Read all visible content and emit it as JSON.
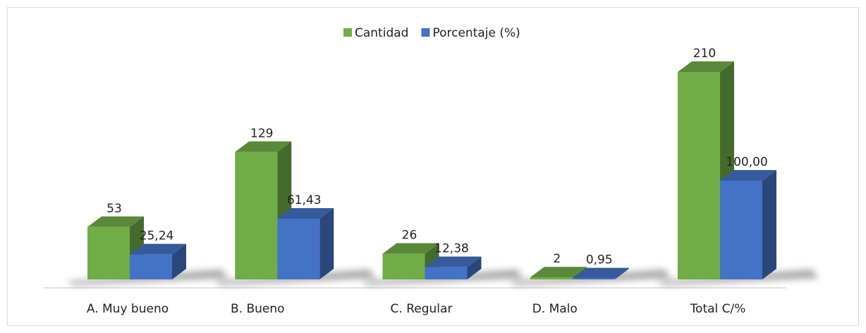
{
  "chart_data": {
    "type": "bar3d",
    "categories": [
      "A. Muy bueno",
      "B. Bueno",
      "C. Regular",
      "D. Malo",
      "Total C/%"
    ],
    "series": [
      {
        "name": "Cantidad",
        "color": "#70ad47",
        "values": [
          53,
          129,
          26,
          2,
          210
        ]
      },
      {
        "name": "Porcentaje (%)",
        "color": "#4472c4",
        "values": [
          25.24,
          61.43,
          12.38,
          0.95,
          100
        ],
        "value_labels": [
          "25,24",
          "61,43",
          "12,38",
          "0,95",
          "100,00"
        ]
      }
    ],
    "legend": "top"
  }
}
